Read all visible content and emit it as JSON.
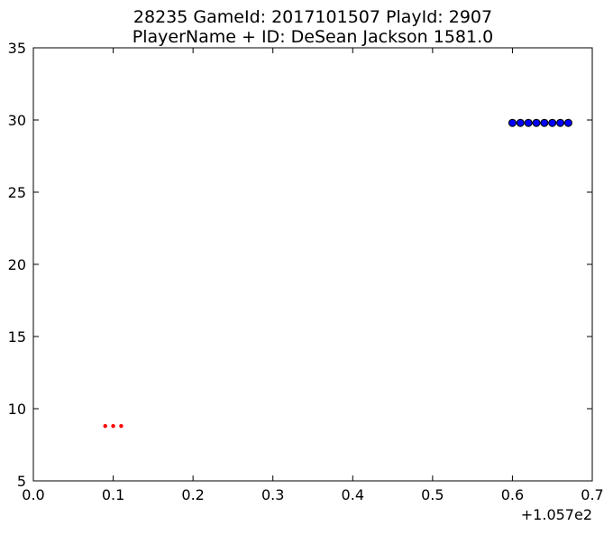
{
  "chart_data": {
    "type": "scatter",
    "title_line1": "28235 GameId: 2017101507 PlayId: 2907",
    "title_line2": "PlayerName + ID: DeSean Jackson 1581.0",
    "xlabel": "",
    "ylabel": "",
    "x_offset_label": "+1.057e2",
    "xlim": [
      0.0,
      0.7
    ],
    "ylim": [
      5,
      35
    ],
    "x_ticks": [
      "0.0",
      "0.1",
      "0.2",
      "0.3",
      "0.4",
      "0.5",
      "0.6",
      "0.7"
    ],
    "y_ticks": [
      "5",
      "10",
      "15",
      "20",
      "25",
      "30",
      "35"
    ],
    "grid": false,
    "series": [
      {
        "color": "#ff0000",
        "marker": "small-dot",
        "x": [
          0.09,
          0.1,
          0.11
        ],
        "y": [
          8.8,
          8.8,
          8.8
        ]
      },
      {
        "color": "#0000ff",
        "marker": "circle",
        "x": [
          0.6,
          0.61,
          0.62,
          0.63,
          0.64,
          0.65,
          0.66,
          0.67
        ],
        "y": [
          29.8,
          29.8,
          29.8,
          29.8,
          29.8,
          29.8,
          29.8,
          29.8
        ]
      }
    ]
  }
}
